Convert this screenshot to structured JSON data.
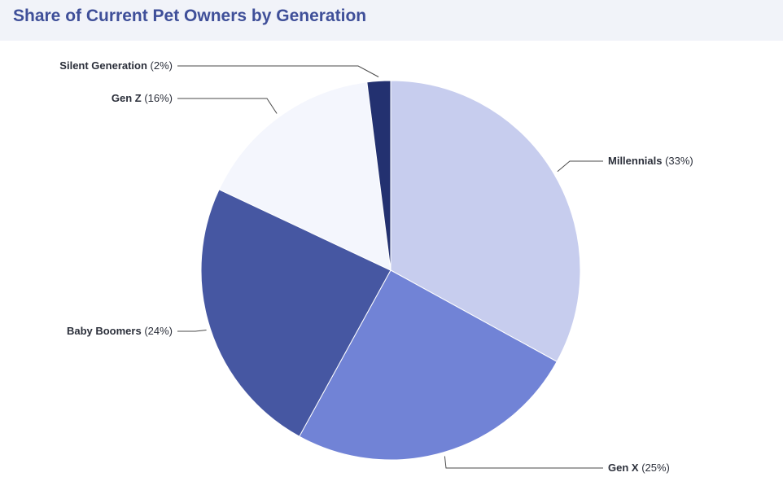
{
  "chart_data": {
    "type": "pie",
    "title": "Share of Current Pet Owners by Generation",
    "slices": [
      {
        "name": "Millennials",
        "value": 33,
        "label": "Millennials",
        "pct": "(33%)",
        "color": "#c7cdee",
        "side": "right"
      },
      {
        "name": "Gen X",
        "value": 25,
        "label": "Gen X",
        "pct": "(25%)",
        "color": "#7183d6",
        "side": "right"
      },
      {
        "name": "Baby Boomers",
        "value": 24,
        "label": "Baby Boomers",
        "pct": "(24%)",
        "color": "#4657a2",
        "side": "left"
      },
      {
        "name": "Gen Z",
        "value": 16,
        "label": "Gen Z",
        "pct": "(16%)",
        "color": "#f4f6fd",
        "side": "left"
      },
      {
        "name": "Silent Generation",
        "value": 2,
        "label": "Silent Generation",
        "pct": "(2%)",
        "color": "#233170",
        "side": "left"
      }
    ],
    "start": "12 o'clock",
    "direction": "clockwise",
    "legend": "none"
  },
  "colors": {
    "title": "#3f4f99",
    "header_background": "#f1f3f9"
  }
}
